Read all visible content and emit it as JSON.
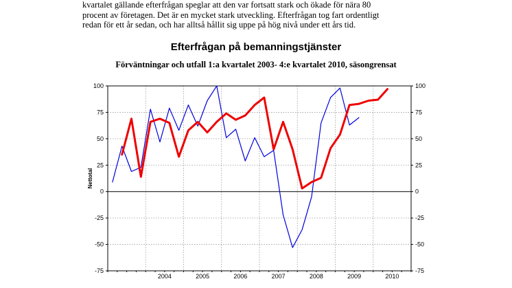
{
  "text": {
    "intro_lines": [
      "kvartalet gällande efterfrågan speglar att den var fortsatt stark och ökade för nära 80",
      "procent av företagen. Det är en mycket stark utveckling. Efterfrågan tog fart ordentligt",
      "redan för ett år sedan, och har alltså hållit sig uppe på hög nivå under ett års tid."
    ]
  },
  "chart_data": {
    "type": "line",
    "title": "Efterfrågan på bemanningstjänster",
    "subtitle": "Förväntningar och utfall 1:a kvartalet 2003- 4:e kvartalet 2010, säsongrensat",
    "ylabel": "Nettotal",
    "ylim": [
      -75,
      100
    ],
    "yticks": [
      -75,
      -50,
      -25,
      0,
      25,
      50,
      75,
      100
    ],
    "ytick_labels_left": [
      "-75",
      "-50",
      "-25",
      "0",
      "25",
      "50",
      "75",
      "100"
    ],
    "ytick_labels_right": [
      "-75",
      "-50",
      "-25",
      "0",
      "25",
      "50",
      "75",
      "100"
    ],
    "year_labels": [
      "2004",
      "2005",
      "2006",
      "2007",
      "2008",
      "2009",
      "2010"
    ],
    "start_year": 2003,
    "grid": true,
    "colors": {
      "blue": "#0000dd",
      "red": "#ee0000"
    },
    "series": [
      {
        "color": "blue",
        "start_quarter": 0,
        "values": [
          9,
          43,
          19,
          23,
          78,
          47,
          79,
          58,
          82,
          62,
          86,
          100,
          51,
          59,
          29,
          51,
          33,
          39,
          -22,
          -53,
          -36,
          -5,
          65,
          89,
          98,
          63,
          70
        ]
      },
      {
        "color": "red",
        "start_quarter": 1,
        "values": [
          35,
          69,
          14,
          66,
          69,
          65,
          33,
          58,
          66,
          56,
          66,
          74,
          68,
          72,
          82,
          89,
          40,
          66,
          40,
          3,
          9,
          13,
          41,
          54,
          82,
          83,
          86,
          87,
          97
        ]
      }
    ]
  }
}
